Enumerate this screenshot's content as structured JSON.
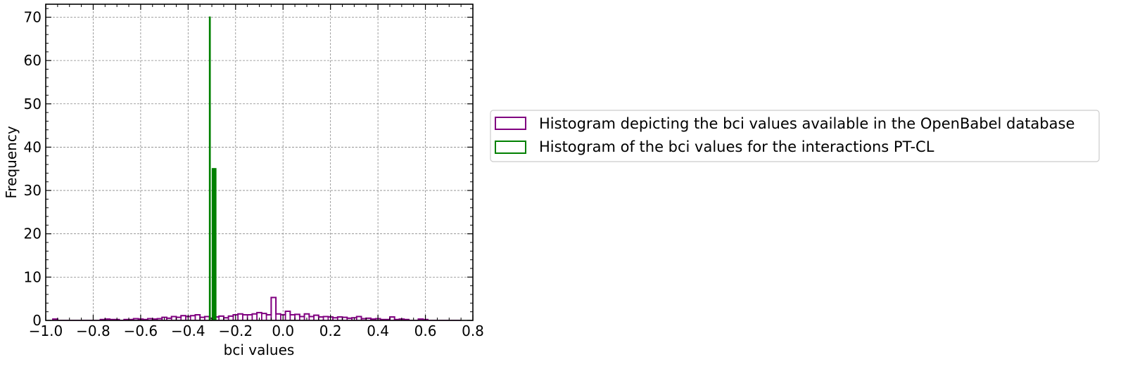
{
  "chart_data": {
    "type": "bar",
    "xlabel": "bci values",
    "ylabel": "Frequency",
    "xlim": [
      -1.0,
      0.8
    ],
    "ylim": [
      0,
      73
    ],
    "xticks": [
      -1.0,
      -0.8,
      -0.6,
      -0.4,
      -0.2,
      0.0,
      0.2,
      0.4,
      0.6,
      0.8
    ],
    "xtick_labels": [
      "−1.0",
      "−0.8",
      "−0.6",
      "−0.4",
      "−0.2",
      "0.0",
      "0.2",
      "0.4",
      "0.6",
      "0.8"
    ],
    "yticks": [
      0,
      10,
      20,
      30,
      40,
      50,
      60,
      70
    ],
    "ytick_labels": [
      "0",
      "10",
      "20",
      "30",
      "40",
      "50",
      "60",
      "70"
    ],
    "grid": true,
    "legend_position": "right-outside",
    "series": [
      {
        "name": "Histogram depicting the bci values available in the OpenBabel database",
        "color": "#800080",
        "histtype": "step",
        "bin_edges": [
          -0.97,
          -0.95,
          -0.93,
          -0.91,
          -0.89,
          -0.87,
          -0.85,
          -0.83,
          -0.81,
          -0.79,
          -0.77,
          -0.75,
          -0.73,
          -0.71,
          -0.69,
          -0.67,
          -0.65,
          -0.63,
          -0.61,
          -0.59,
          -0.57,
          -0.55,
          -0.53,
          -0.51,
          -0.49,
          -0.47,
          -0.45,
          -0.43,
          -0.41,
          -0.39,
          -0.37,
          -0.35,
          -0.33,
          -0.31,
          -0.29,
          -0.27,
          -0.25,
          -0.23,
          -0.21,
          -0.19,
          -0.17,
          -0.15,
          -0.13,
          -0.11,
          -0.09,
          -0.07,
          -0.05,
          -0.03,
          -0.01,
          0.01,
          0.03,
          0.05,
          0.07,
          0.09,
          0.11,
          0.13,
          0.15,
          0.17,
          0.19,
          0.21,
          0.23,
          0.25,
          0.27,
          0.29,
          0.31,
          0.33,
          0.35,
          0.37,
          0.39,
          0.41,
          0.43,
          0.45,
          0.47,
          0.49,
          0.51,
          0.53,
          0.55,
          0.57,
          0.59,
          0.61,
          0.63,
          0.65,
          0.67,
          0.69,
          0.71,
          0.73,
          0.75
        ],
        "values": [
          0.3,
          0,
          0,
          0,
          0,
          0,
          0,
          0,
          0,
          0,
          0.2,
          0.3,
          0.2,
          0.2,
          0,
          0.2,
          0.2,
          0.4,
          0.3,
          0.2,
          0.4,
          0.3,
          0.4,
          0.7,
          0.5,
          0.9,
          0.7,
          1.1,
          0.9,
          1.1,
          1.3,
          0.7,
          0.9,
          0.5,
          0.8,
          1.0,
          0.6,
          1.0,
          1.3,
          1.5,
          1.3,
          1.3,
          1.5,
          1.8,
          1.6,
          1.3,
          5.3,
          1.5,
          1.3,
          2.1,
          1.3,
          1.4,
          0.9,
          1.5,
          0.9,
          1.2,
          0.8,
          0.9,
          0.8,
          0.6,
          0.8,
          0.7,
          0.5,
          0.6,
          0.9,
          0.4,
          0.5,
          0.3,
          0.4,
          0.2,
          0.2,
          0.8,
          0.2,
          0.3,
          0.2,
          0,
          0,
          0.3,
          0.2,
          0,
          0,
          0,
          0,
          0,
          0,
          0
        ]
      },
      {
        "name": "Histogram of the bci values for the interactions PT-CL",
        "color": "#008000",
        "histtype": "step",
        "bin_edges": [
          -0.3115,
          -0.3095,
          -0.3075,
          -0.3055,
          -0.3035,
          -0.3015,
          -0.2995,
          -0.2975,
          -0.2955,
          -0.2935,
          -0.2915,
          -0.2895,
          -0.2875,
          -0.2855,
          -0.2835,
          -0.2815
        ],
        "values": [
          0,
          70,
          0,
          0,
          0,
          0,
          0,
          35,
          35,
          35,
          35,
          35,
          35,
          35,
          0
        ]
      }
    ]
  }
}
